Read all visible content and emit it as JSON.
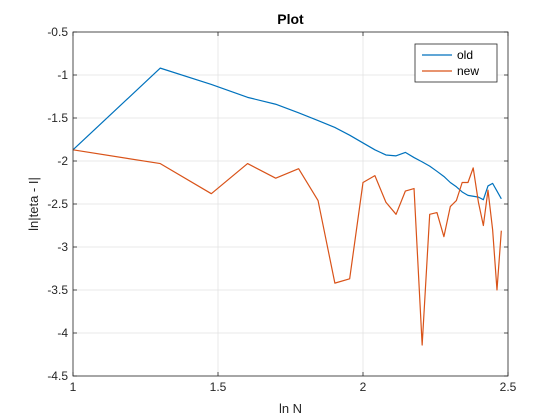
{
  "chart_data": {
    "type": "line",
    "title": "Plot",
    "xlabel": "ln N",
    "ylabel": "ln|teta - I|",
    "xlim": [
      1,
      2.5
    ],
    "ylim": [
      -4.5,
      -0.5
    ],
    "xticks": [
      "1",
      "1.5",
      "2",
      "2.5"
    ],
    "yticks": [
      "-0.5",
      "-1",
      "-1.5",
      "-2",
      "-2.5",
      "-3",
      "-3.5",
      "-4",
      "-4.5"
    ],
    "xtick_values": [
      1,
      1.5,
      2,
      2.5
    ],
    "ytick_values": [
      -0.5,
      -1,
      -1.5,
      -2,
      -2.5,
      -3,
      -3.5,
      -4,
      -4.5
    ],
    "grid": true,
    "legend_position": "top-right",
    "series": [
      {
        "name": "old",
        "color": "#0072BD",
        "x": [
          1.0,
          1.301,
          1.477,
          1.602,
          1.699,
          1.778,
          1.845,
          1.903,
          1.954,
          2.0,
          2.041,
          2.079,
          2.114,
          2.146,
          2.176,
          2.204,
          2.23,
          2.255,
          2.279,
          2.301,
          2.322,
          2.342,
          2.362,
          2.38,
          2.398,
          2.415,
          2.431,
          2.447,
          2.462,
          2.477
        ],
        "y": [
          -1.87,
          -0.92,
          -1.11,
          -1.26,
          -1.34,
          -1.44,
          -1.53,
          -1.61,
          -1.7,
          -1.79,
          -1.87,
          -1.93,
          -1.94,
          -1.9,
          -1.96,
          -2.01,
          -2.06,
          -2.12,
          -2.18,
          -2.25,
          -2.3,
          -2.36,
          -2.4,
          -2.41,
          -2.42,
          -2.45,
          -2.29,
          -2.26,
          -2.35,
          -2.44
        ]
      },
      {
        "name": "new",
        "color": "#D95319",
        "x": [
          1.0,
          1.301,
          1.477,
          1.602,
          1.699,
          1.778,
          1.845,
          1.903,
          1.954,
          2.0,
          2.041,
          2.079,
          2.114,
          2.146,
          2.176,
          2.204,
          2.23,
          2.255,
          2.279,
          2.301,
          2.322,
          2.342,
          2.362,
          2.38,
          2.398,
          2.415,
          2.431,
          2.447,
          2.462,
          2.477
        ],
        "y": [
          -1.87,
          -2.03,
          -2.38,
          -2.03,
          -2.2,
          -2.09,
          -2.46,
          -3.42,
          -3.37,
          -2.25,
          -2.17,
          -2.48,
          -2.62,
          -2.35,
          -2.32,
          -4.14,
          -2.62,
          -2.6,
          -2.88,
          -2.53,
          -2.46,
          -2.25,
          -2.25,
          -2.08,
          -2.48,
          -2.75,
          -2.34,
          -2.8,
          -3.5,
          -2.81
        ]
      }
    ]
  }
}
